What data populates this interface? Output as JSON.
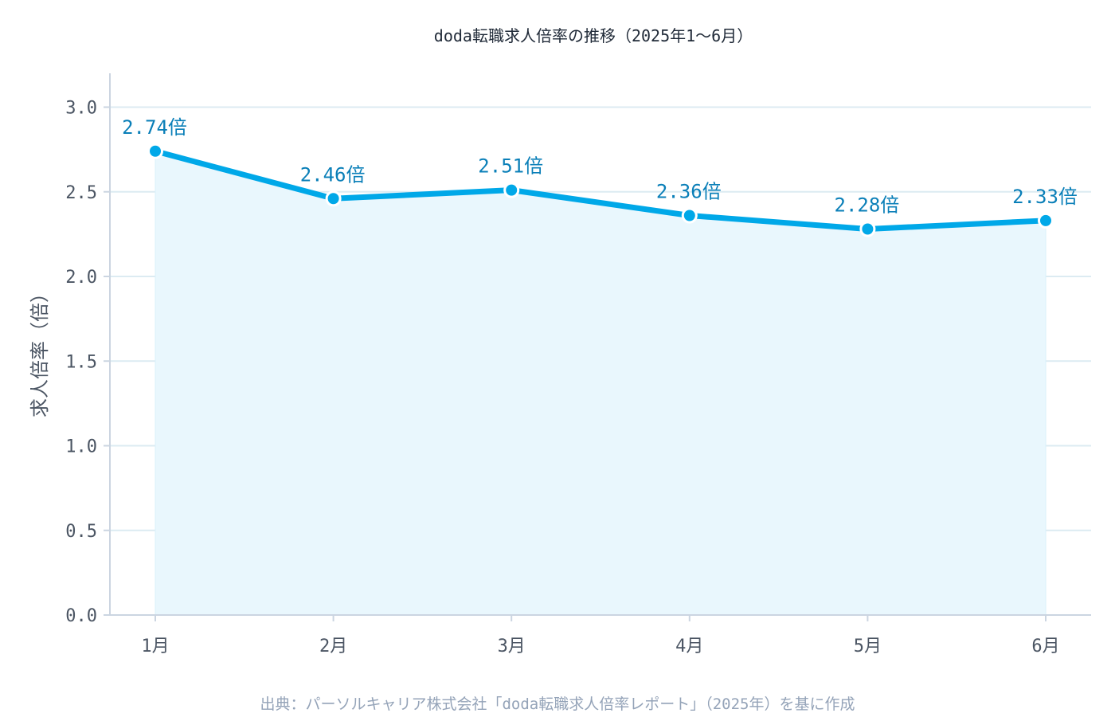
{
  "chart_data": {
    "type": "line",
    "title": "doda転職求人倍率の推移（2025年1〜6月）",
    "ylabel": "求人倍率（倍）",
    "xlabel": "",
    "categories": [
      "1月",
      "2月",
      "3月",
      "4月",
      "5月",
      "6月"
    ],
    "series": [
      {
        "values": [
          2.74,
          2.46,
          2.51,
          2.36,
          2.28,
          2.33
        ],
        "labels": [
          "2.74倍",
          "2.46倍",
          "2.51倍",
          "2.36倍",
          "2.28倍",
          "2.33倍"
        ]
      }
    ],
    "ylim": [
      0,
      3.2
    ],
    "yticks": [
      0.0,
      0.5,
      1.0,
      1.5,
      2.0,
      2.5,
      3.0
    ],
    "ytick_labels": [
      "0.0",
      "0.5",
      "1.0",
      "1.5",
      "2.0",
      "2.5",
      "3.0"
    ],
    "grid": "horizontal",
    "area_fill": true,
    "colors": {
      "line": "#00a8e8",
      "area": "#e9f7fd",
      "label": "#0a7fb8",
      "grid": "#dcebf2",
      "axis": "#cbd5e1"
    },
    "source": "出典：パーソルキャリア株式会社「doda転職求人倍率レポート」（2025年）を基に作成"
  }
}
